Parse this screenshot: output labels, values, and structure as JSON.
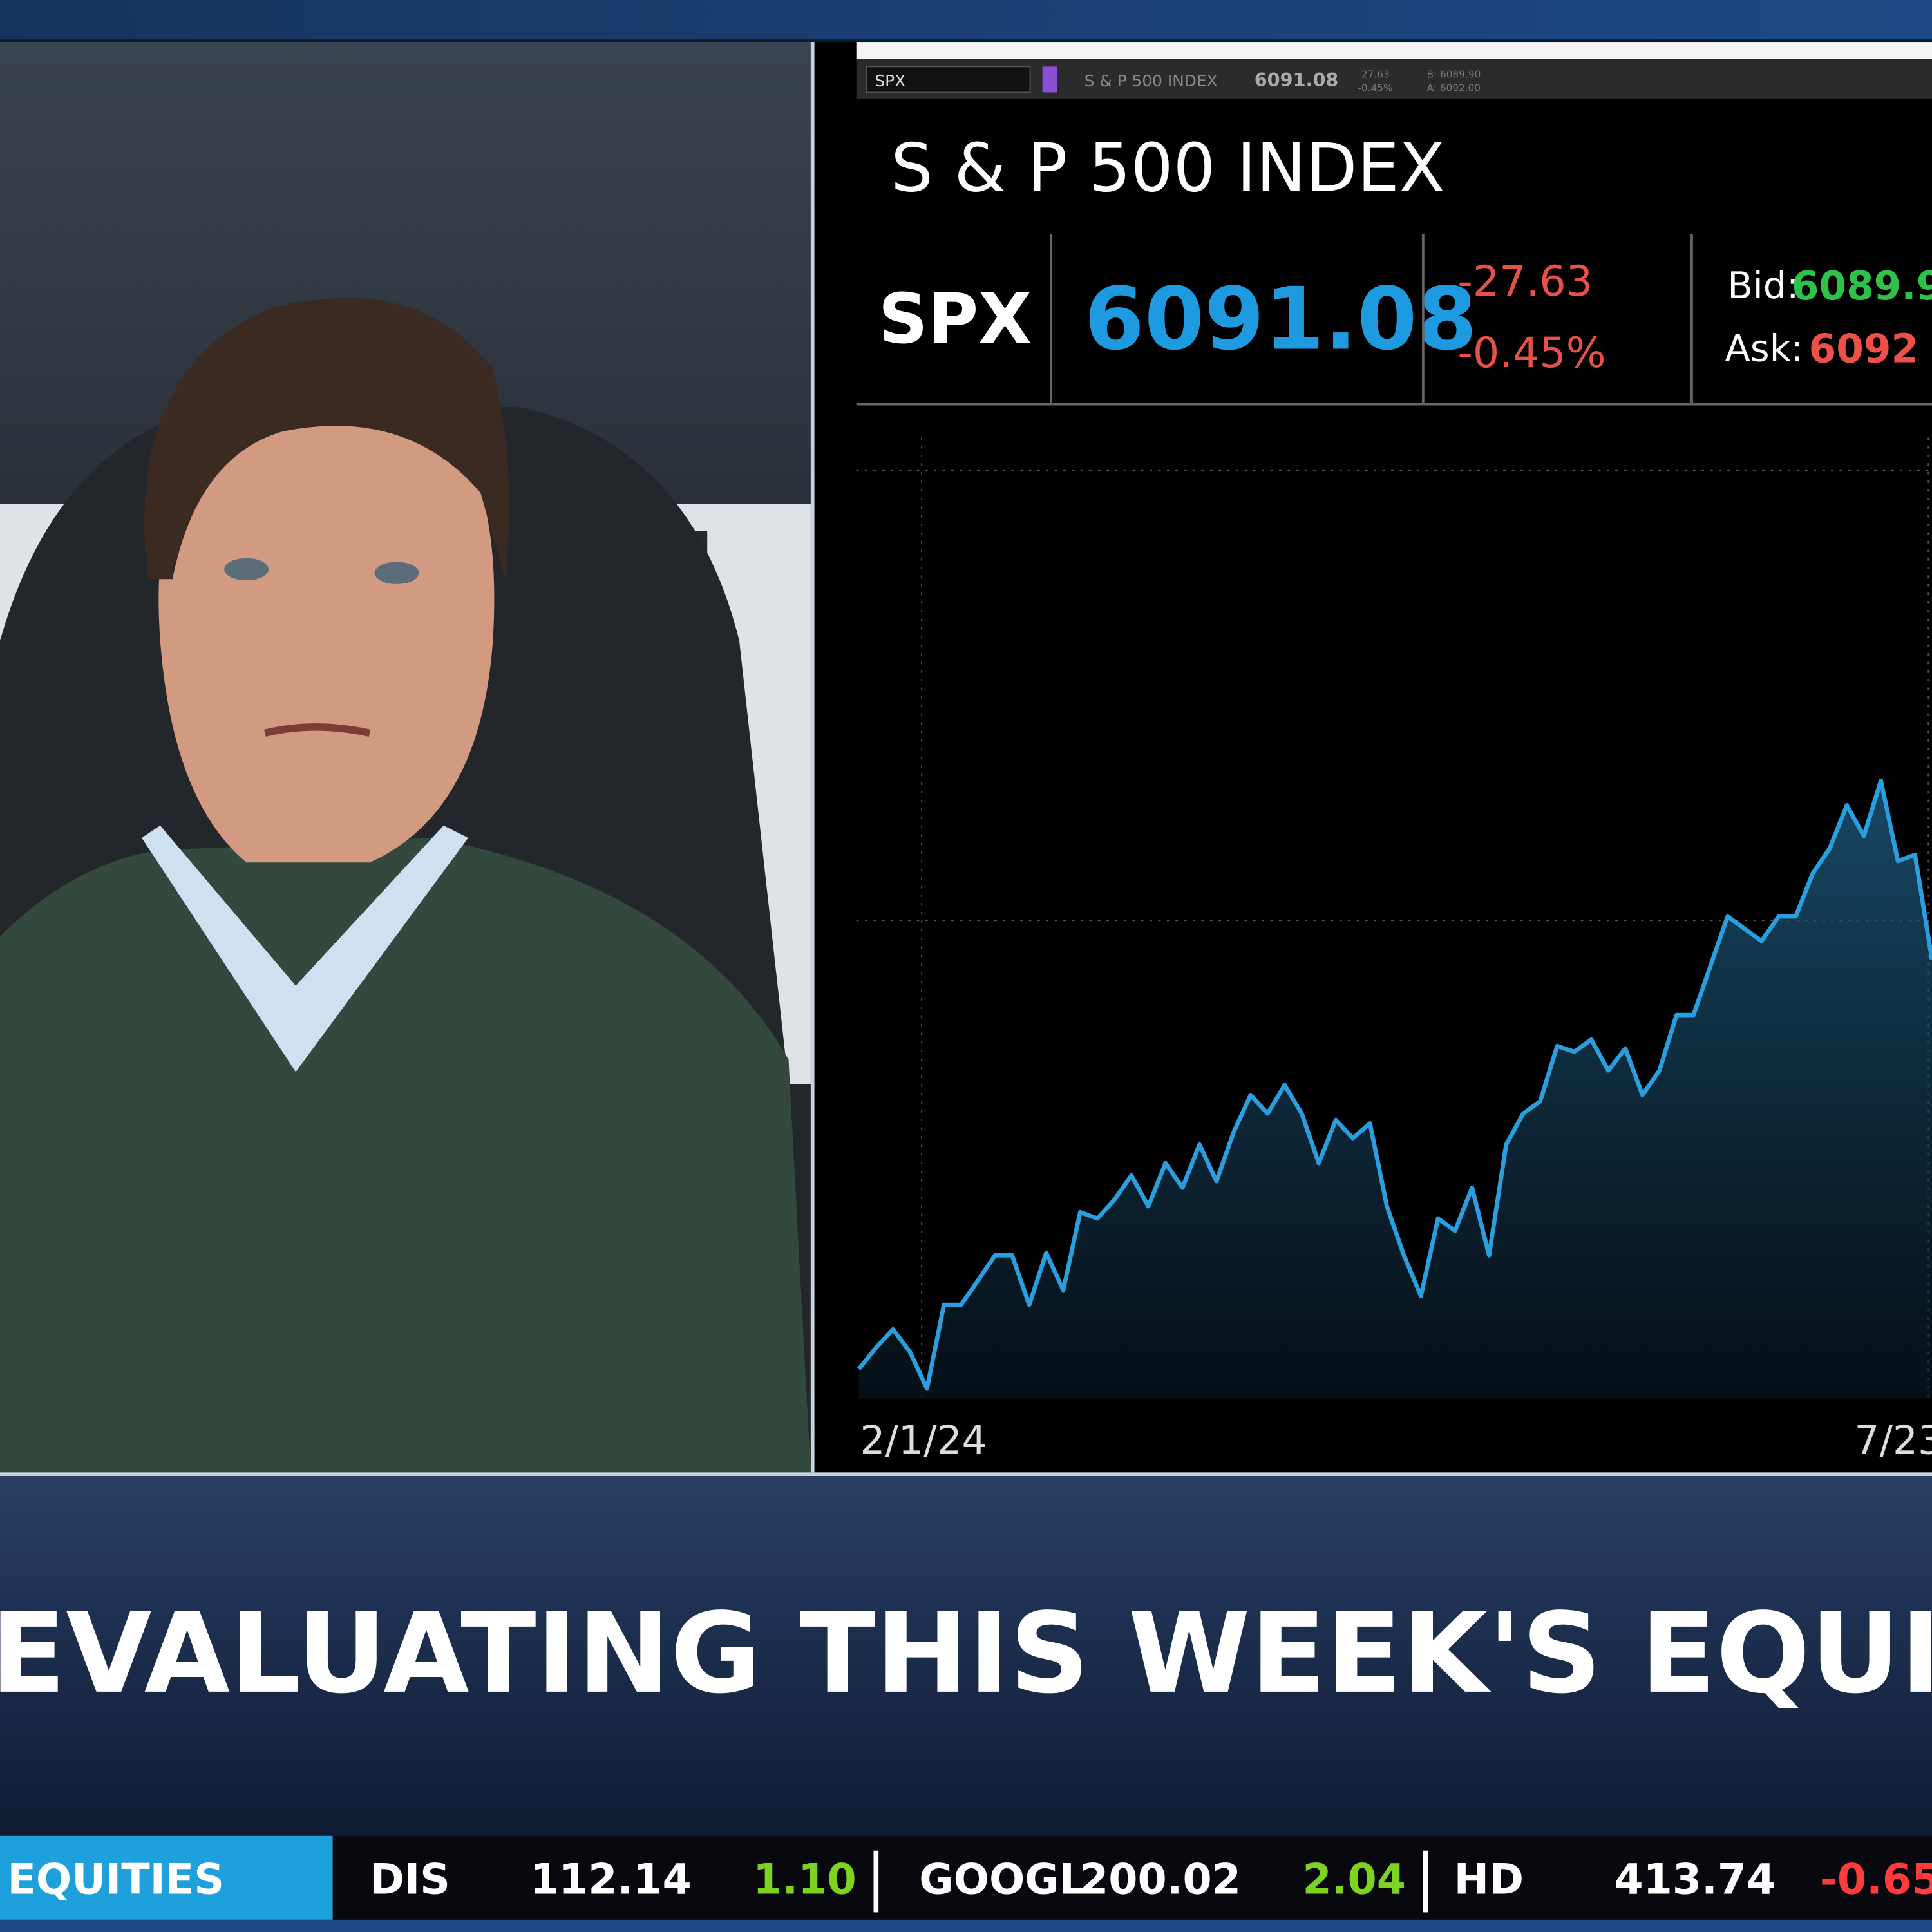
{
  "toolbar": {
    "symbol": "SPX",
    "name": "S & P 500 INDEX",
    "last": "6091.08",
    "change": "-27.63",
    "change_pct": "-0.45%",
    "bid": "B: 6089.90",
    "ask": "A: 6092.00"
  },
  "quote": {
    "title": "S & P 500 INDEX",
    "symbol": "SPX",
    "last": "6091.08",
    "change": "-27.63",
    "change_pct": "-0.45%",
    "bid_label": "Bid:",
    "bid": "6089.9",
    "ask_label": "Ask:",
    "ask": "6092"
  },
  "chart_data": {
    "type": "line",
    "x_labels": [
      "2/1/24",
      "7/23"
    ],
    "color": "#2a9fe0",
    "ylim": [
      4830,
      6790
    ],
    "values": [
      4890,
      4933,
      4971,
      4925,
      4850,
      5021,
      5021,
      5071,
      5122,
      5122,
      5021,
      5127,
      5051,
      5210,
      5197,
      5235,
      5285,
      5222,
      5310,
      5260,
      5348,
      5273,
      5373,
      5449,
      5411,
      5469,
      5411,
      5310,
      5398,
      5361,
      5391,
      5222,
      5122,
      5039,
      5197,
      5172,
      5260,
      5122,
      5348,
      5411,
      5436,
      5549,
      5537,
      5562,
      5499,
      5544,
      5449,
      5499,
      5612,
      5612,
      5713,
      5813,
      5788,
      5763,
      5813,
      5813,
      5901,
      5952,
      6040,
      5977,
      6090,
      5926,
      5939,
      5725
    ]
  },
  "headline": "EVALUATING THIS WEEK'S EQUITY STR",
  "ticker": {
    "label": "EQUITIES",
    "items": [
      {
        "symbol": "DIS",
        "price": "112.14",
        "change": "1.10",
        "color": "#7ed321"
      },
      {
        "symbol": "GOOGL",
        "price": "200.02",
        "change": "2.04",
        "color": "#7ed321"
      },
      {
        "symbol": "HD",
        "price": "413.74",
        "change": "-0.65",
        "color": "#ff3b3b"
      }
    ]
  }
}
